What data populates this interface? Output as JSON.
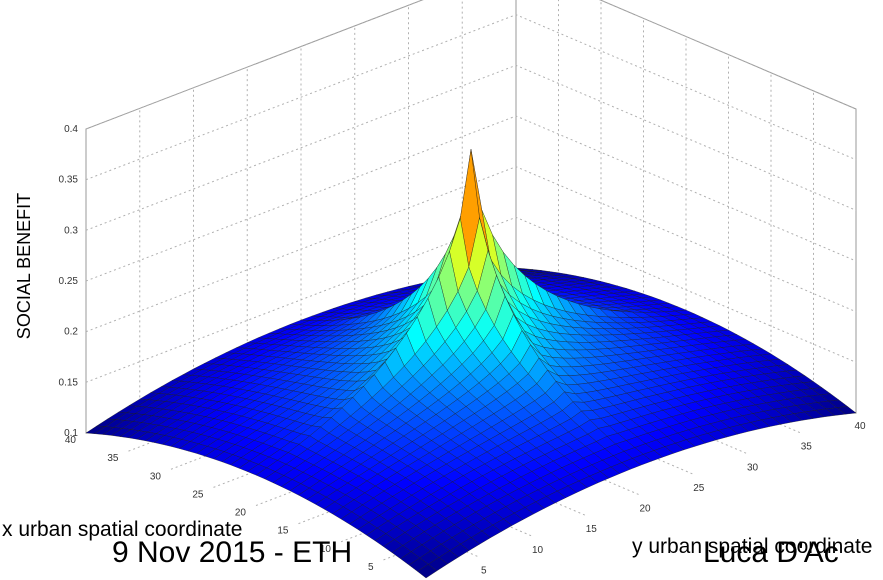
{
  "chart_data": {
    "type": "surface",
    "title": "",
    "zlabel": "SOCIAL BENEFIT",
    "xlabel": "x urban spatial coordinate",
    "ylabel": "y urban spatial coordinate",
    "xlim": [
      0,
      40
    ],
    "ylim": [
      0,
      40
    ],
    "zlim": [
      0.1,
      0.4
    ],
    "z_ticks": [
      "0.1",
      "0.15",
      "0.2",
      "0.25",
      "0.3",
      "0.35",
      "0.4"
    ],
    "x_ticks": [
      "5",
      "10",
      "15",
      "20",
      "25",
      "30",
      "35",
      "40"
    ],
    "y_ticks": [
      "0",
      "5",
      "10",
      "15",
      "20",
      "25",
      "30",
      "35",
      "40"
    ],
    "grid": true,
    "colormap": "jet",
    "peak": {
      "x": 20,
      "y": 20,
      "z": 0.37
    },
    "corner_value": 0.1,
    "edge_mid_value": 0.16
  },
  "footer": {
    "left": "9 Nov 2015 - ETH",
    "right": "Luca D'Ac"
  }
}
